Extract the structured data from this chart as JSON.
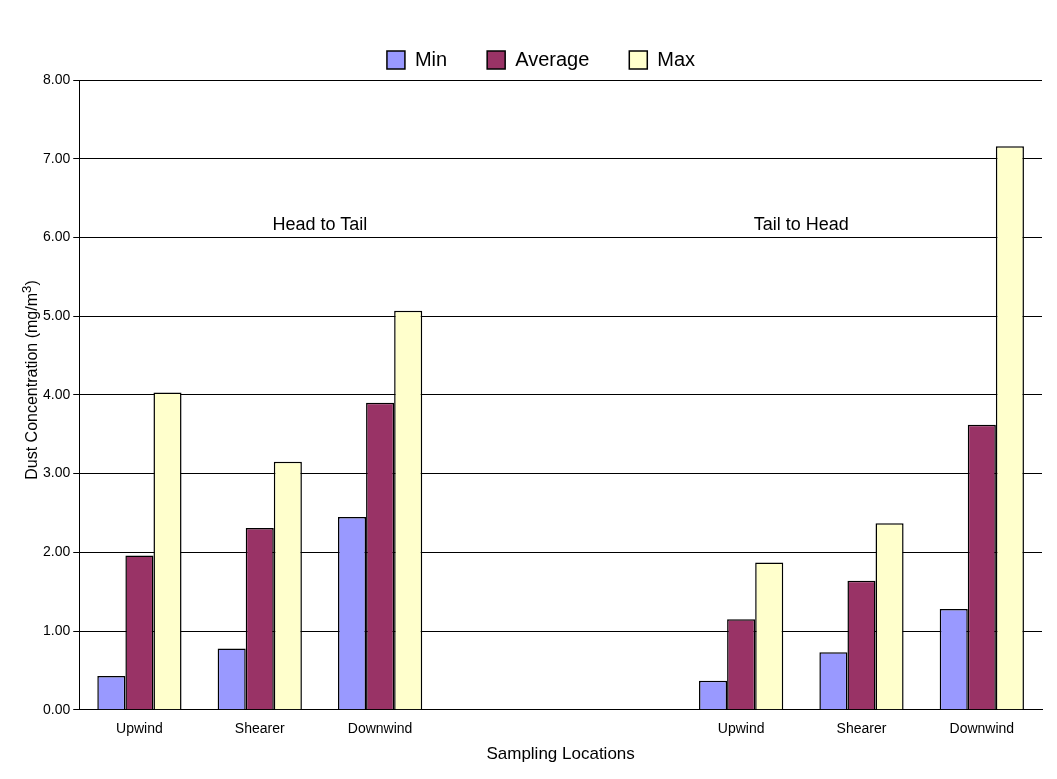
{
  "chart_data": {
    "type": "bar",
    "xlabel": "Sampling Locations",
    "ylabel": "Dust Concentration (mg/m$^{3}$)",
    "categories": [
      "Upwind",
      "Shearer",
      "Downwind",
      null,
      null,
      "Upwind",
      "Shearer",
      "Downwind"
    ],
    "series": [
      {
        "name": "Min",
        "color": "#9999ff",
        "values": [
          0.43,
          0.78,
          2.45,
          null,
          null,
          0.37,
          0.73,
          1.28
        ]
      },
      {
        "name": "Average",
        "color": "#993366",
        "values": [
          1.96,
          2.31,
          3.9,
          null,
          null,
          1.15,
          1.64,
          3.62
        ]
      },
      {
        "name": "Max",
        "color": "#ffffcc",
        "values": [
          4.03,
          3.15,
          5.07,
          null,
          null,
          1.87,
          2.37,
          7.16
        ]
      }
    ],
    "ylim": [
      0,
      8
    ],
    "yticks": [
      {
        "value": 0,
        "label": "0.00"
      },
      {
        "value": 1,
        "label": "1.00"
      },
      {
        "value": 2,
        "label": "2.00"
      },
      {
        "value": 3,
        "label": "3.00"
      },
      {
        "value": 4,
        "label": "4.00"
      },
      {
        "value": 5,
        "label": "5.00"
      },
      {
        "value": 6,
        "label": "6.00"
      },
      {
        "value": 7,
        "label": "7.00"
      },
      {
        "value": 8,
        "label": "8.00"
      }
    ],
    "grid": "y",
    "legend": "top",
    "annotations": [
      "Head to Tail",
      "Tail to Head"
    ]
  }
}
